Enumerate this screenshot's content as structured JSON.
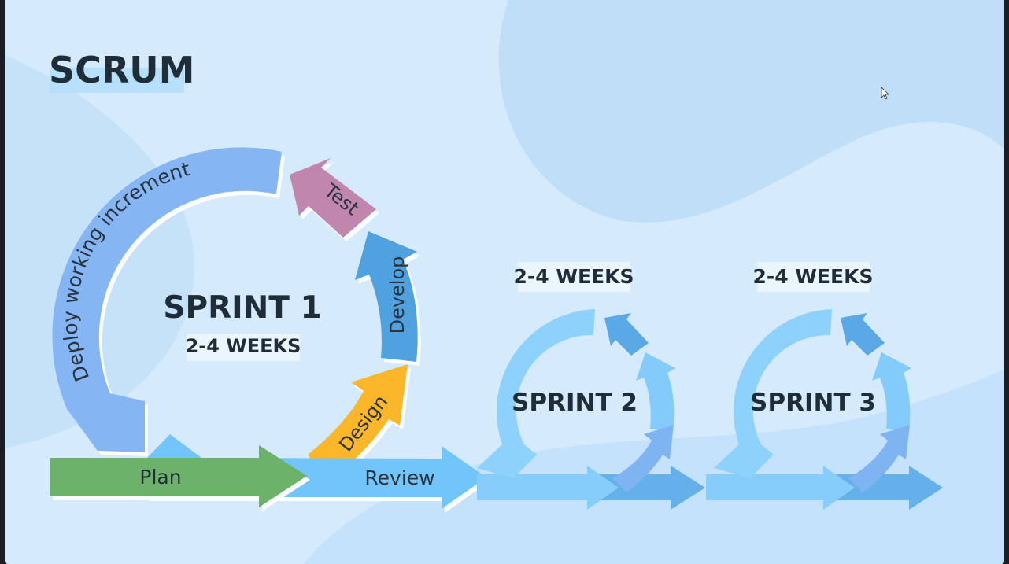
{
  "title": "SCRUM",
  "sprint1": {
    "name": "SPRINT 1",
    "duration": "2-4 WEEKS",
    "phases": {
      "plan": "Plan",
      "design": "Design",
      "develop": "Develop",
      "test": "Test",
      "deploy": "Deploy working increment",
      "review": "Review"
    }
  },
  "sprint2": {
    "name": "SPRINT 2",
    "duration": "2-4 WEEKS"
  },
  "sprint3": {
    "name": "SPRINT 3",
    "duration": "2-4 WEEKS"
  },
  "colors": {
    "background": "#d4eafb",
    "plan": "#6db26a",
    "design": "#fbb62c",
    "develop": "#4fa1e0",
    "test": "#c186ad",
    "deploy": "#85b6f3",
    "review": "#72c5fa",
    "text": "#2a3440"
  }
}
